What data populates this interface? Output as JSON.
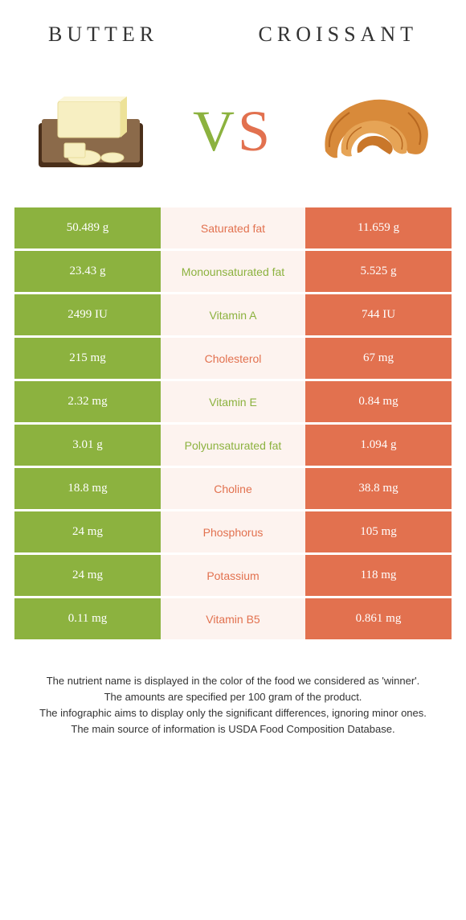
{
  "header": {
    "left_title": "Butter",
    "right_title": "Croissant"
  },
  "colors": {
    "green": "#8cb23f",
    "orange": "#e2714f",
    "mid_bg": "#fdf3ef",
    "white": "#ffffff"
  },
  "vs": {
    "v": "V",
    "s": "S"
  },
  "rows": [
    {
      "left": "50.489 g",
      "label": "Saturated fat",
      "winner": "orange",
      "right": "11.659 g"
    },
    {
      "left": "23.43 g",
      "label": "Monounsaturated fat",
      "winner": "green",
      "right": "5.525 g"
    },
    {
      "left": "2499 IU",
      "label": "Vitamin A",
      "winner": "green",
      "right": "744 IU"
    },
    {
      "left": "215 mg",
      "label": "Cholesterol",
      "winner": "orange",
      "right": "67 mg"
    },
    {
      "left": "2.32 mg",
      "label": "Vitamin E",
      "winner": "green",
      "right": "0.84 mg"
    },
    {
      "left": "3.01 g",
      "label": "Polyunsaturated fat",
      "winner": "green",
      "right": "1.094 g"
    },
    {
      "left": "18.8 mg",
      "label": "Choline",
      "winner": "orange",
      "right": "38.8 mg"
    },
    {
      "left": "24 mg",
      "label": "Phosphorus",
      "winner": "orange",
      "right": "105 mg"
    },
    {
      "left": "24 mg",
      "label": "Potassium",
      "winner": "orange",
      "right": "118 mg"
    },
    {
      "left": "0.11 mg",
      "label": "Vitamin B5",
      "winner": "orange",
      "right": "0.861 mg"
    }
  ],
  "footer": {
    "line1": "The nutrient name is displayed in the color of the food we considered as 'winner'.",
    "line2": "The amounts are specified per 100 gram of the product.",
    "line3": "The infographic aims to display only the significant differences, ignoring minor ones.",
    "line4": "The main source of information is USDA Food Composition Database."
  }
}
